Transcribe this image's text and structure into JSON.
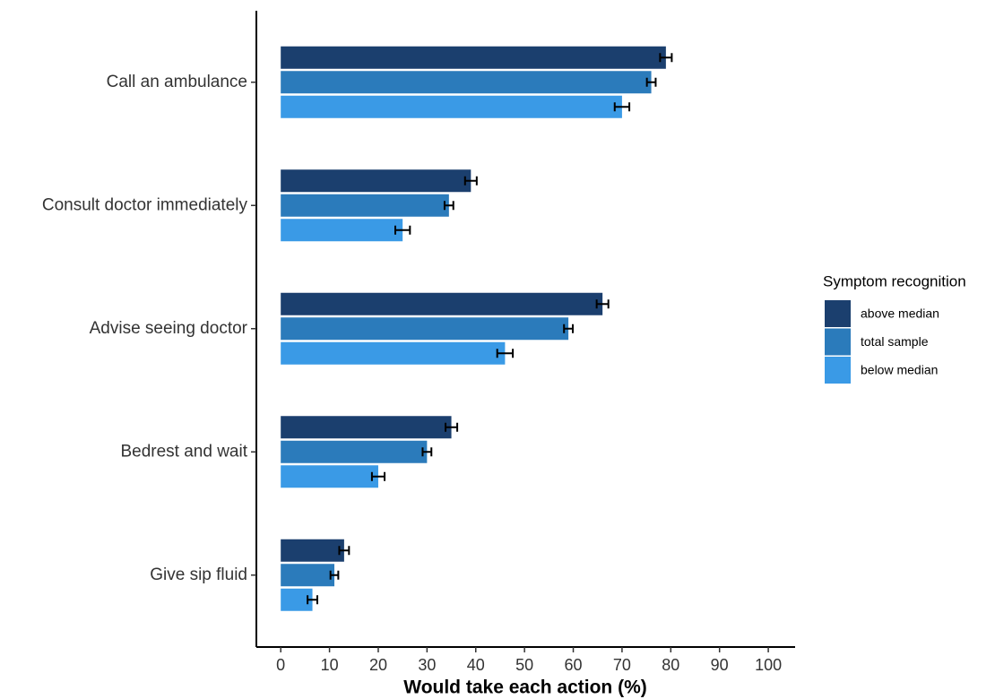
{
  "chart_data": {
    "type": "bar",
    "orientation": "horizontal",
    "categories": [
      "Call an ambulance",
      "Consult doctor immediately",
      "Advise seeing doctor",
      "Bedrest and wait",
      "Give sip fluid"
    ],
    "series": [
      {
        "name": "above median",
        "color": "#1b3f6e",
        "values": [
          79,
          39,
          66,
          35,
          13
        ],
        "errors": [
          1.2,
          1.2,
          1.2,
          1.2,
          1.0
        ]
      },
      {
        "name": "total sample",
        "color": "#2b7bbb",
        "values": [
          76,
          34.5,
          59,
          30,
          11
        ],
        "errors": [
          0.9,
          0.9,
          0.9,
          0.9,
          0.8
        ]
      },
      {
        "name": "below median",
        "color": "#3a9ae6",
        "values": [
          70,
          25,
          46,
          20,
          6.5
        ],
        "errors": [
          1.5,
          1.5,
          1.6,
          1.3,
          1.0
        ]
      }
    ],
    "xlabel": "Would take each action (%)",
    "legend_title": "Symptom recognition",
    "legend_position": "right",
    "xlim": [
      -5,
      105.5
    ],
    "xticks": [
      0,
      10,
      20,
      30,
      40,
      50,
      60,
      70,
      80,
      90,
      100
    ],
    "grid": false
  }
}
